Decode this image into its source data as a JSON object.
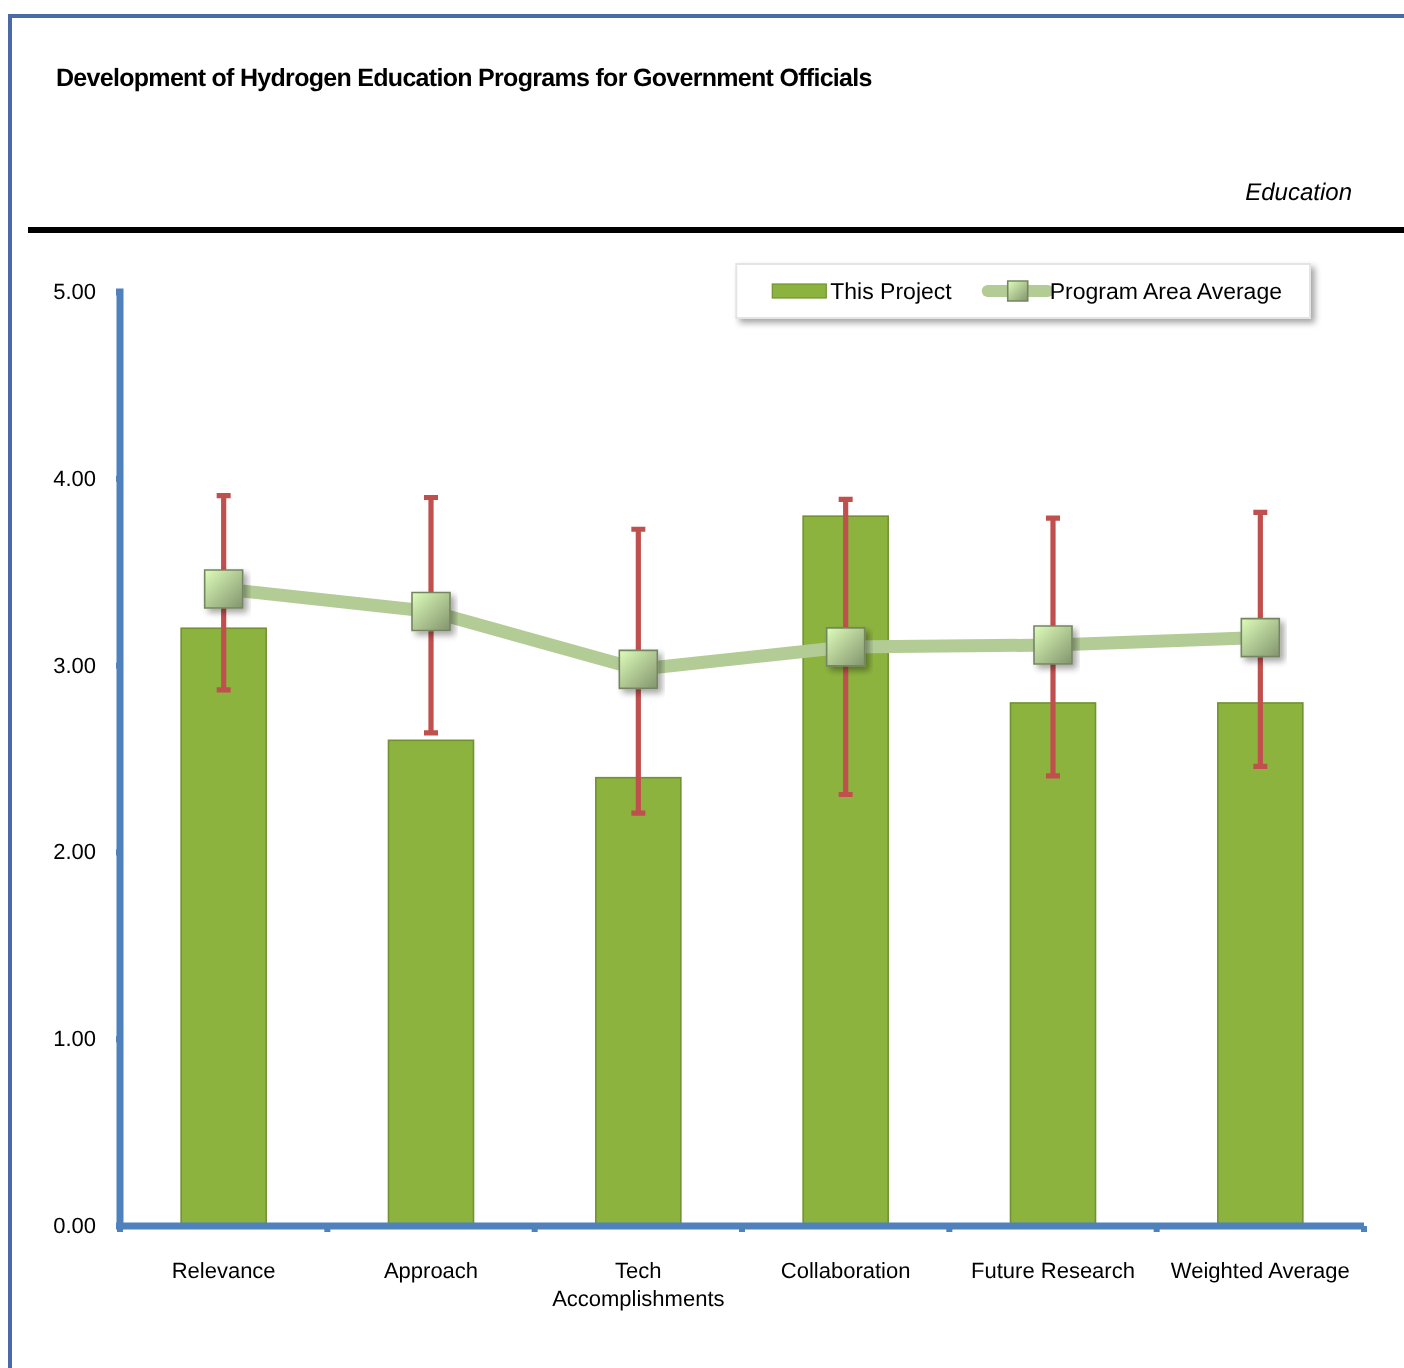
{
  "chart_data": {
    "type": "bar",
    "title": "Development of Hydrogen Education Programs for Government Officials",
    "subtitle": "Education",
    "categories": [
      "Relevance",
      "Approach",
      "Tech Accomplishments",
      "Collaboration",
      "Future Research",
      "Weighted Average"
    ],
    "series": [
      {
        "name": "This Project",
        "color": "#8db33f",
        "values": [
          3.2,
          2.6,
          2.4,
          3.8,
          2.8,
          2.8
        ]
      },
      {
        "name": "Program Area Average",
        "type": "line",
        "color": "#b3cc96",
        "values": [
          3.41,
          3.29,
          2.98,
          3.1,
          3.11,
          3.15
        ],
        "errors": [
          [
            2.87,
            3.91
          ],
          [
            2.64,
            3.9
          ],
          [
            2.21,
            3.73
          ],
          [
            2.31,
            3.89
          ],
          [
            2.41,
            3.79
          ],
          [
            2.46,
            3.82
          ]
        ]
      }
    ],
    "ylim": [
      0,
      5
    ],
    "yticks": [
      {
        "value": 0,
        "label": "0.00"
      },
      {
        "value": 1,
        "label": "1.00"
      },
      {
        "value": 2,
        "label": "2.00"
      },
      {
        "value": 3,
        "label": "3.00"
      },
      {
        "value": 4,
        "label": "4.00"
      },
      {
        "value": 5,
        "label": "5.00"
      }
    ],
    "grid": false,
    "legend": "top right",
    "marker": "square",
    "line_style": "solid"
  }
}
